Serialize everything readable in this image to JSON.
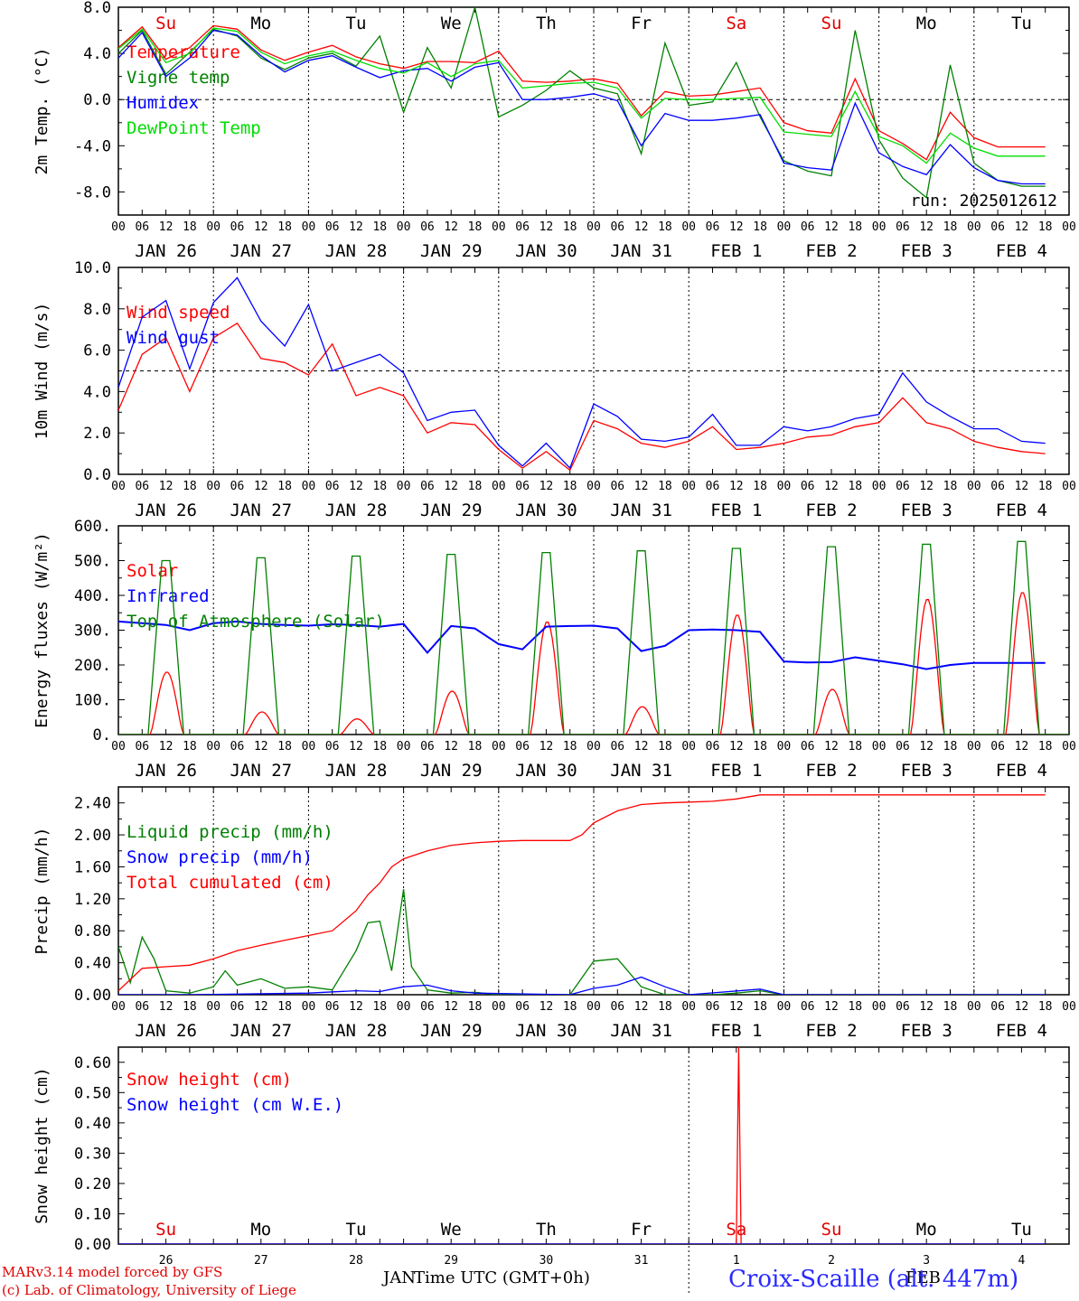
{
  "run": "run: 2025012612",
  "hour_labels": [
    "00",
    "06",
    "12",
    "18"
  ],
  "date_labels": [
    "JAN 26",
    "JAN 27",
    "JAN 28",
    "JAN 29",
    "JAN 30",
    "JAN 31",
    "FEB  1",
    "FEB  2",
    "FEB  3",
    "FEB  4"
  ],
  "day_labels": [
    {
      "text": "Su",
      "color": "#e00000"
    },
    {
      "text": "Mo",
      "color": "#000000"
    },
    {
      "text": "Tu",
      "color": "#000000"
    },
    {
      "text": "We",
      "color": "#000000"
    },
    {
      "text": "Th",
      "color": "#000000"
    },
    {
      "text": "Fr",
      "color": "#000000"
    },
    {
      "text": "Sa",
      "color": "#e00000"
    },
    {
      "text": "Su",
      "color": "#e00000"
    },
    {
      "text": "Mo",
      "color": "#000000"
    },
    {
      "text": "Tu",
      "color": "#000000"
    }
  ],
  "bottom_axis": {
    "day_numbers": [
      "26",
      "27",
      "28",
      "29",
      "30",
      "31",
      "1",
      "2",
      "3",
      "4"
    ],
    "month_left": "JAN",
    "month_right": "FEB",
    "xlabel": "Time UTC (GMT+0h)"
  },
  "footer": {
    "model_line": "MARv3.14 model forced by GFS",
    "credit_line": "(c) Lab. of Climatology, University of Liege",
    "station": "Croix-Scaille (alt. 447m)"
  },
  "colors": {
    "red": "#ff0000",
    "green": "#008000",
    "blue": "#0000ff",
    "lightgreen": "#00dd00"
  },
  "chart_data": [
    {
      "type": "line",
      "ylabel": "2m Temp. (°C)",
      "ylim": [
        -10.0,
        8.0
      ],
      "yticks": [
        -8.0,
        -4.0,
        0.0,
        4.0,
        8.0
      ],
      "yticklabels": [
        "-8.0",
        "-4.0",
        "0.0",
        "4.0",
        "8.0"
      ],
      "hline": 0.0,
      "x": [
        0,
        6,
        12,
        18,
        24,
        30,
        36,
        42,
        48,
        54,
        60,
        66,
        72,
        78,
        84,
        90,
        96,
        102,
        108,
        114,
        120,
        126,
        132,
        138,
        144,
        150,
        156,
        162,
        168,
        174,
        180,
        186,
        192,
        198,
        204,
        210,
        216,
        222,
        228,
        234
      ],
      "series": [
        {
          "name": "Temperature",
          "color": "#ff0000",
          "values": [
            4.5,
            6.3,
            3.5,
            4.5,
            6.4,
            6.1,
            4.3,
            3.4,
            4.1,
            4.7,
            3.7,
            3.1,
            2.7,
            3.3,
            3.3,
            3.2,
            4.2,
            1.6,
            1.5,
            1.6,
            1.8,
            1.4,
            -1.4,
            0.7,
            0.3,
            0.4,
            0.7,
            1.0,
            -2.0,
            -2.7,
            -2.9,
            1.8,
            -2.7,
            -3.8,
            -5.2,
            -1.1,
            -3.3,
            -4.1,
            -4.1,
            -4.1
          ]
        },
        {
          "name": "Vigne temp",
          "color": "#008000",
          "values": [
            4.0,
            6.0,
            2.2,
            4.1,
            6.1,
            5.5,
            3.6,
            2.6,
            3.6,
            4.0,
            2.9,
            5.5,
            -1.1,
            4.5,
            1.0,
            8.0,
            -1.5,
            -0.5,
            0.8,
            2.5,
            1.0,
            0.5,
            -4.7,
            4.9,
            -0.5,
            -0.2,
            3.2,
            -1.5,
            -5.3,
            -6.2,
            -6.6,
            6.0,
            -3.5,
            -6.8,
            -8.5,
            3.0,
            -5.5,
            -7.0,
            -7.5,
            -7.5
          ]
        },
        {
          "name": "Humidex",
          "color": "#0000ff",
          "values": [
            3.6,
            5.8,
            2.0,
            3.6,
            6.0,
            5.6,
            3.8,
            2.4,
            3.4,
            3.8,
            2.8,
            1.9,
            2.5,
            2.7,
            1.6,
            2.8,
            3.2,
            0.0,
            0.0,
            0.2,
            0.5,
            -0.1,
            -4.0,
            -1.2,
            -1.8,
            -1.8,
            -1.6,
            -1.3,
            -5.5,
            -5.9,
            -6.1,
            -0.3,
            -4.6,
            -5.8,
            -6.5,
            -3.9,
            -5.9,
            -7.0,
            -7.3,
            -7.3
          ]
        },
        {
          "name": "DewPoint Temp",
          "color": "#00dd00",
          "values": [
            4.4,
            6.1,
            3.2,
            4.0,
            6.2,
            5.9,
            4.1,
            3.1,
            3.8,
            4.2,
            3.4,
            2.7,
            2.3,
            3.2,
            2.0,
            3.1,
            3.4,
            1.0,
            1.2,
            1.4,
            1.5,
            1.0,
            -1.6,
            0.1,
            0.0,
            0.0,
            0.1,
            0.2,
            -2.8,
            -3.0,
            -3.2,
            0.7,
            -3.2,
            -4.0,
            -5.5,
            -2.9,
            -4.2,
            -4.9,
            -4.9,
            -4.9
          ]
        }
      ]
    },
    {
      "type": "line",
      "ylabel": "10m Wind (m/s)",
      "ylim": [
        0.0,
        10.0
      ],
      "yticks": [
        0.0,
        2.0,
        4.0,
        6.0,
        8.0,
        10.0
      ],
      "yticklabels": [
        "0.0",
        "2.0",
        "4.0",
        "6.0",
        "8.0",
        "10.0"
      ],
      "hline": 5.0,
      "x": [
        0,
        6,
        12,
        18,
        24,
        30,
        36,
        42,
        48,
        54,
        60,
        66,
        72,
        78,
        84,
        90,
        96,
        102,
        108,
        114,
        120,
        126,
        132,
        138,
        144,
        150,
        156,
        162,
        168,
        174,
        180,
        186,
        192,
        198,
        204,
        210,
        216,
        222,
        228,
        234
      ],
      "series": [
        {
          "name": "Wind speed",
          "color": "#ff0000",
          "values": [
            3.1,
            5.8,
            6.6,
            4.0,
            6.6,
            7.3,
            5.6,
            5.4,
            4.8,
            6.3,
            3.8,
            4.2,
            3.8,
            2.0,
            2.5,
            2.4,
            1.2,
            0.3,
            1.1,
            0.2,
            2.6,
            2.2,
            1.5,
            1.3,
            1.6,
            2.3,
            1.2,
            1.3,
            1.5,
            1.8,
            1.9,
            2.3,
            2.5,
            3.7,
            2.5,
            2.2,
            1.6,
            1.3,
            1.1,
            1.0
          ]
        },
        {
          "name": "Wind gust",
          "color": "#0000ff",
          "values": [
            4.2,
            7.6,
            8.4,
            5.1,
            8.3,
            9.5,
            7.4,
            6.2,
            8.2,
            5.0,
            5.4,
            5.8,
            4.9,
            2.6,
            3.0,
            3.1,
            1.4,
            0.4,
            1.5,
            0.3,
            3.4,
            2.8,
            1.7,
            1.6,
            1.8,
            2.9,
            1.4,
            1.4,
            2.3,
            2.1,
            2.3,
            2.7,
            2.9,
            4.9,
            3.5,
            2.8,
            2.2,
            2.2,
            1.6,
            1.5
          ]
        }
      ]
    },
    {
      "type": "line",
      "ylabel": "Energy fluxes (W/m²)",
      "ylim": [
        0,
        600
      ],
      "yticks": [
        0,
        100,
        200,
        300,
        400,
        500,
        600
      ],
      "yticklabels": [
        "0.",
        "100.",
        "200.",
        "300.",
        "400.",
        "500.",
        "600."
      ],
      "series": [
        {
          "name": "Solar",
          "color": "#ff0000",
          "peaks_by_day": [
            180,
            65,
            45,
            125,
            325,
            80,
            345,
            130,
            390,
            410
          ]
        },
        {
          "name": "Infrared",
          "color": "#0000ff",
          "x": [
            0,
            6,
            12,
            18,
            24,
            30,
            36,
            42,
            48,
            54,
            60,
            66,
            72,
            78,
            84,
            90,
            96,
            102,
            108,
            114,
            120,
            126,
            132,
            138,
            144,
            150,
            156,
            162,
            168,
            174,
            180,
            186,
            192,
            198,
            204,
            210,
            216,
            222,
            228,
            234
          ],
          "values": [
            325,
            320,
            315,
            300,
            320,
            325,
            318,
            315,
            313,
            317,
            315,
            310,
            318,
            235,
            312,
            305,
            260,
            245,
            310,
            312,
            313,
            305,
            240,
            255,
            300,
            302,
            300,
            295,
            210,
            207,
            208,
            222,
            212,
            202,
            188,
            200,
            206,
            206,
            206,
            206
          ]
        },
        {
          "name": "Top of Atmosphere (Solar)",
          "color": "#008000",
          "peaks_by_day": [
            500,
            508,
            513,
            518,
            523,
            528,
            535,
            540,
            547,
            555
          ]
        }
      ]
    },
    {
      "type": "line",
      "ylabel": "Precip (mm/h)",
      "ylim": [
        0.0,
        2.6
      ],
      "yticks": [
        0.0,
        0.4,
        0.8,
        1.2,
        1.6,
        2.0,
        2.4
      ],
      "yticklabels": [
        "0.00",
        "0.40",
        "0.80",
        "1.20",
        "1.60",
        "2.00",
        "2.40"
      ],
      "series": [
        {
          "name": "Liquid precip (mm/h)",
          "color": "#008000",
          "x": [
            0,
            3,
            6,
            9,
            12,
            18,
            24,
            27,
            30,
            36,
            42,
            48,
            54,
            60,
            63,
            66,
            69,
            72,
            74,
            78,
            84,
            90,
            96,
            114,
            120,
            126,
            132,
            138,
            144,
            150,
            156,
            162,
            168,
            234
          ],
          "values": [
            0.6,
            0.15,
            0.72,
            0.45,
            0.05,
            0.02,
            0.1,
            0.3,
            0.12,
            0.2,
            0.08,
            0.1,
            0.06,
            0.55,
            0.9,
            0.92,
            0.3,
            1.32,
            0.35,
            0.06,
            0.02,
            0.03,
            0.0,
            0.0,
            0.42,
            0.45,
            0.1,
            0.0,
            0.0,
            0.0,
            0.02,
            0.05,
            0.0,
            0.0
          ]
        },
        {
          "name": "Snow precip (mm/h)",
          "color": "#0000ff",
          "x": [
            0,
            18,
            48,
            60,
            66,
            72,
            78,
            84,
            90,
            114,
            120,
            126,
            132,
            138,
            144,
            162,
            168,
            234
          ],
          "values": [
            0.0,
            0.0,
            0.02,
            0.05,
            0.04,
            0.1,
            0.12,
            0.05,
            0.02,
            0.0,
            0.08,
            0.12,
            0.22,
            0.1,
            0.0,
            0.07,
            0.0,
            0.0
          ]
        },
        {
          "name": "Total cumulated (cm)",
          "color": "#ff0000",
          "x": [
            0,
            6,
            12,
            18,
            24,
            30,
            36,
            42,
            48,
            54,
            60,
            63,
            66,
            69,
            72,
            78,
            84,
            90,
            96,
            102,
            108,
            114,
            117,
            120,
            126,
            132,
            138,
            144,
            150,
            156,
            162,
            168,
            234
          ],
          "values": [
            0.05,
            0.33,
            0.35,
            0.37,
            0.45,
            0.55,
            0.62,
            0.68,
            0.74,
            0.8,
            1.05,
            1.25,
            1.4,
            1.6,
            1.7,
            1.8,
            1.87,
            1.9,
            1.92,
            1.93,
            1.93,
            1.93,
            2.0,
            2.15,
            2.3,
            2.38,
            2.4,
            2.41,
            2.42,
            2.45,
            2.5,
            2.5,
            2.5
          ]
        }
      ]
    },
    {
      "type": "line",
      "ylabel": "Snow height (cm)",
      "ylim": [
        0.0,
        0.65
      ],
      "yticks": [
        0.0,
        0.1,
        0.2,
        0.3,
        0.4,
        0.5,
        0.6
      ],
      "yticklabels": [
        "0.00",
        "0.10",
        "0.20",
        "0.30",
        "0.40",
        "0.50",
        "0.60"
      ],
      "series": [
        {
          "name": "Snow height (cm)",
          "color": "#ff0000",
          "x": [
            0,
            155,
            156,
            156.6,
            157.2,
            158,
            234
          ],
          "values": [
            0.0,
            0.0,
            0.0,
            0.65,
            0.0,
            0.0,
            0.0
          ]
        },
        {
          "name": "Snow height (cm W.E.)",
          "color": "#0000ff",
          "x": [
            0,
            234
          ],
          "values": [
            0.0,
            0.0
          ]
        }
      ]
    }
  ]
}
